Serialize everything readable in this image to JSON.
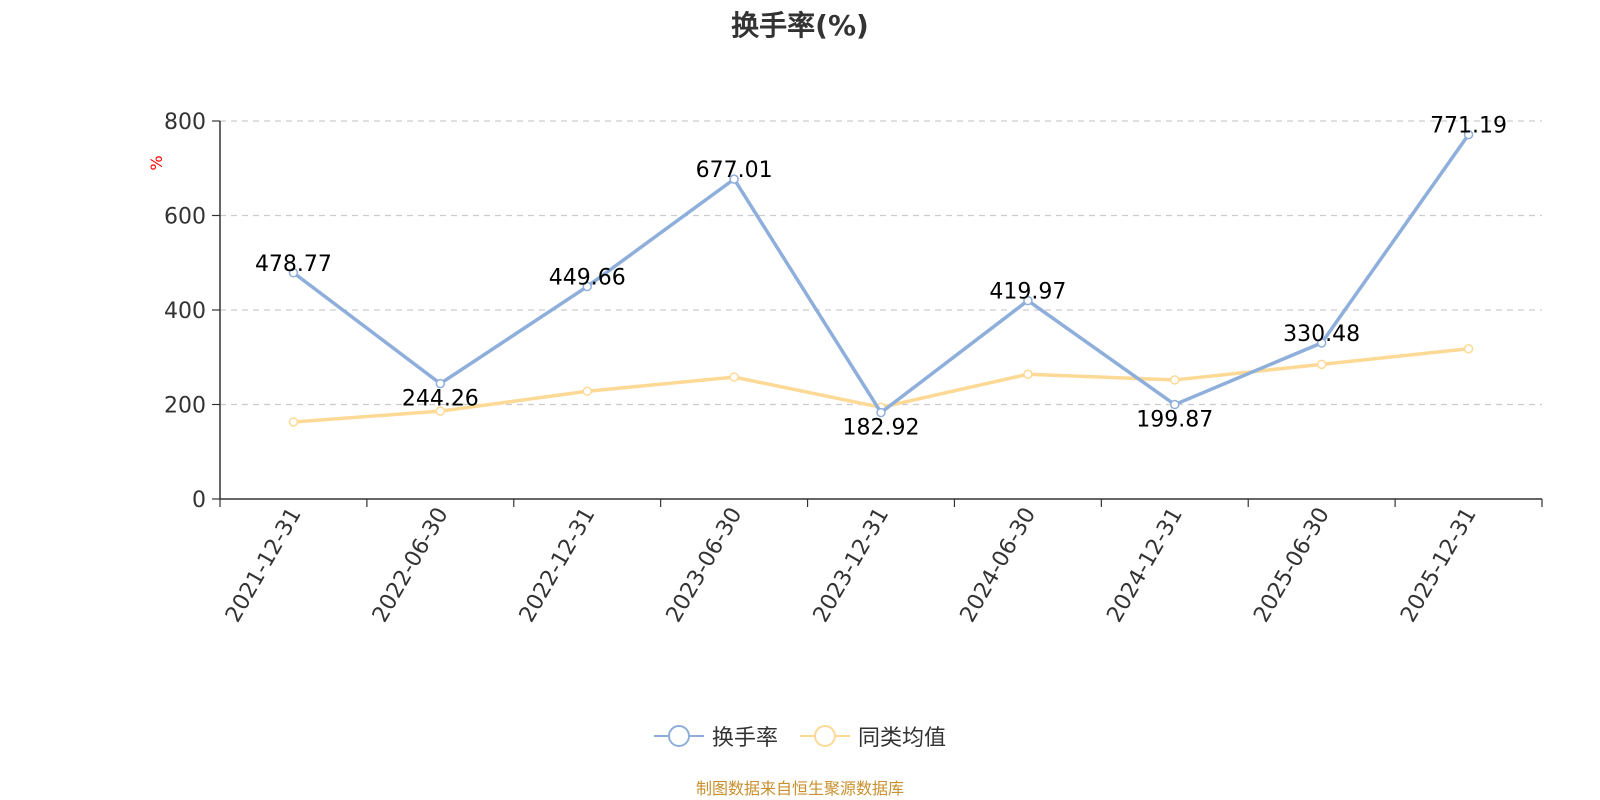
{
  "title": "换手率(%)",
  "source": "制图数据来自恒生聚源数据库",
  "chart_data": {
    "type": "line",
    "title": "换手率(%)",
    "categories": [
      "2021-12-31",
      "2022-06-30",
      "2022-12-31",
      "2023-06-30",
      "2023-12-31",
      "2024-06-30",
      "2024-12-31",
      "2025-06-30",
      "2025-12-31"
    ],
    "ylabel": "%",
    "ylim": [
      0,
      800
    ],
    "yticks": [
      0,
      200,
      400,
      600,
      800
    ],
    "grid": true,
    "legend_position": "bottom",
    "series": [
      {
        "name": "换手率",
        "color": "#8eaedb",
        "values": [
          478.77,
          244.26,
          449.66,
          677.01,
          182.92,
          419.97,
          199.87,
          330.48,
          771.19
        ],
        "labels": [
          "478.77",
          "244.26",
          "449.66",
          "677.01",
          "182.92",
          "419.97",
          "199.87",
          "330.48",
          "771.19"
        ]
      },
      {
        "name": "同类均值",
        "color": "#fdd996",
        "values": [
          163,
          186,
          228,
          258,
          194,
          264,
          252,
          285,
          318
        ]
      }
    ]
  }
}
